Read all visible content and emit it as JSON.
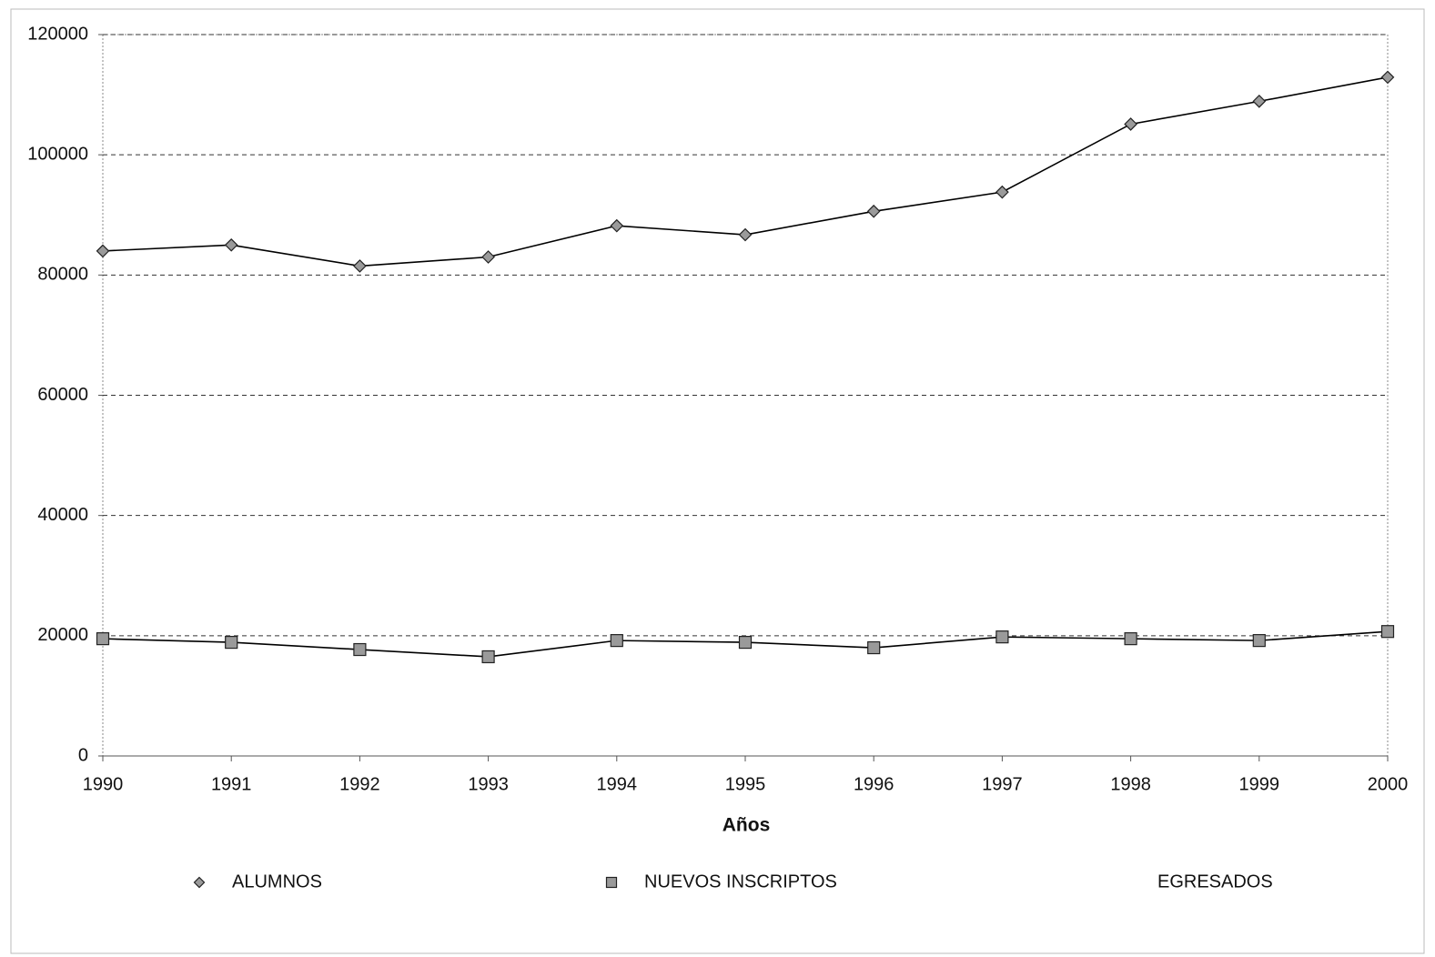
{
  "chart_data": {
    "type": "line",
    "x_label": "Años",
    "categories": [
      "1990",
      "1991",
      "1992",
      "1993",
      "1994",
      "1995",
      "1996",
      "1997",
      "1998",
      "1999",
      "2000"
    ],
    "series": [
      {
        "name": "ALUMNOS",
        "color": "#000000",
        "marker": "diamond",
        "marker_color": "#9a9a9a",
        "values": [
          84000,
          85000,
          81500,
          83000,
          88200,
          86700,
          90600,
          93800,
          105100,
          108900,
          112900
        ]
      },
      {
        "name": "NUEVOS INSCRIPTOS",
        "color": "#000000",
        "marker": "square",
        "marker_color": "#9a9a9a",
        "values": [
          19500,
          18900,
          17700,
          16500,
          19200,
          18900,
          18000,
          19800,
          19500,
          19200,
          20700
        ]
      },
      {
        "name": "EGRESADOS",
        "values": [
          null,
          null,
          null,
          null,
          null,
          null,
          null,
          null,
          null,
          null,
          null
        ]
      }
    ],
    "ylim": [
      0,
      120000
    ],
    "yticks": [
      0,
      20000,
      40000,
      60000,
      80000,
      100000,
      120000
    ],
    "grid": true,
    "legend": "bottom"
  }
}
